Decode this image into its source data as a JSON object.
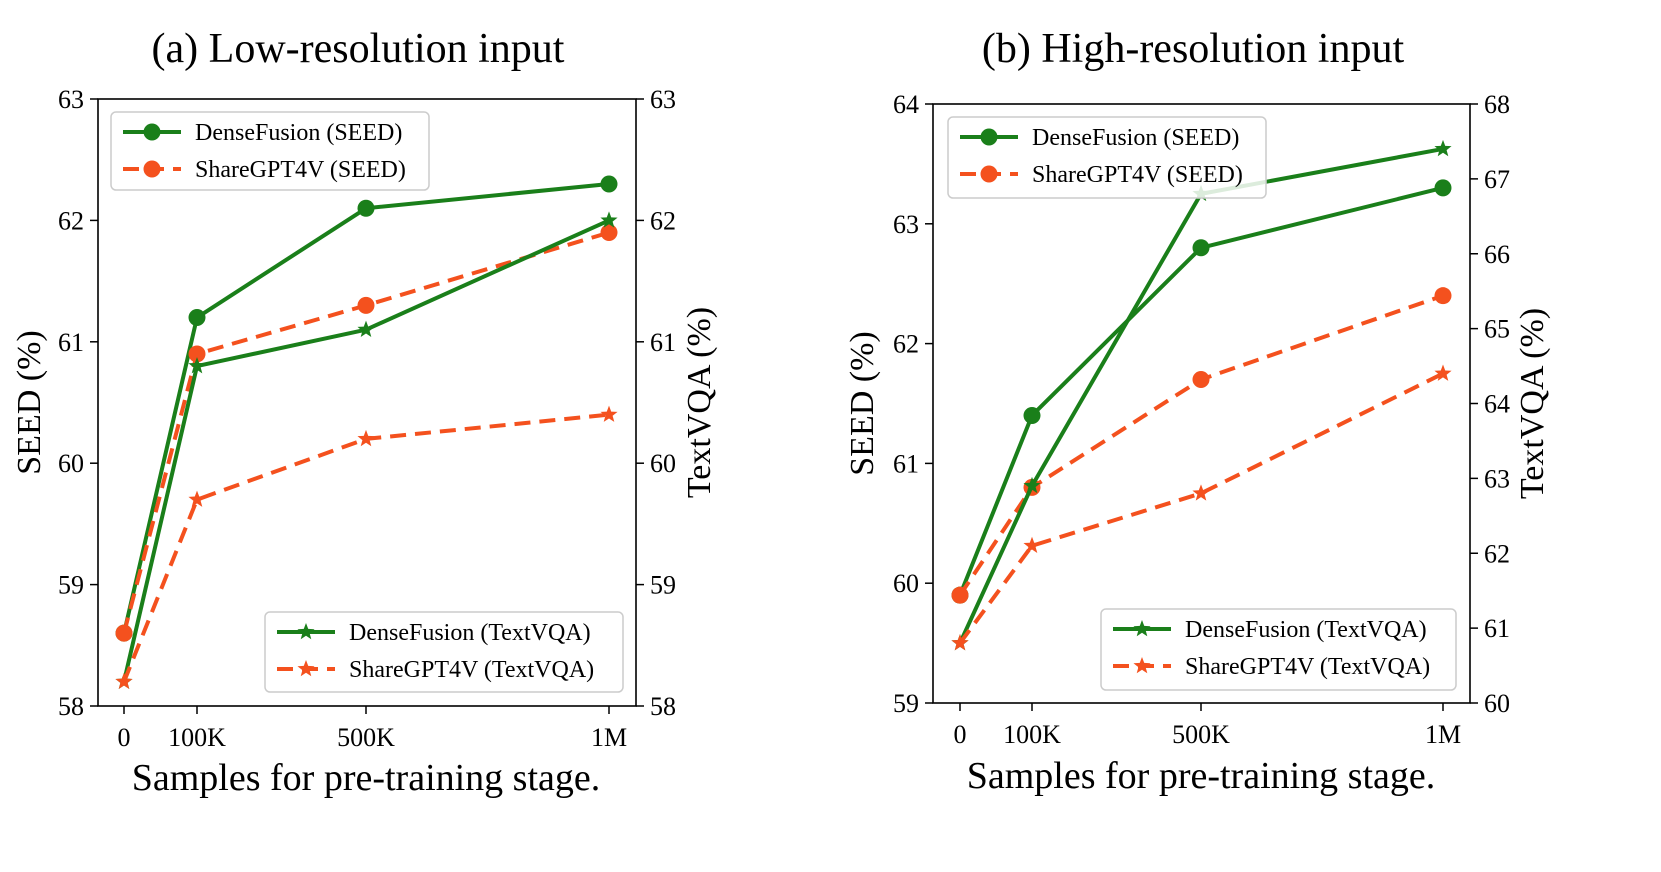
{
  "chart_data": [
    {
      "type": "line",
      "title": "(a) Low-resolution input",
      "xlabel": "Samples for pre-training stage.",
      "ylabel": "SEED (%)",
      "y2label": "TextVQA (%)",
      "x_tick_labels": [
        "0",
        "100K",
        "500K",
        "1M"
      ],
      "x": [
        0,
        100000,
        500000,
        1000000
      ],
      "ylim": [
        58,
        63
      ],
      "y2lim": [
        58,
        63
      ],
      "y_ticks": [
        58,
        59,
        60,
        61,
        62,
        63
      ],
      "y2_ticks": [
        58,
        59,
        60,
        61,
        62,
        63
      ],
      "legends": [
        {
          "placement": "upper-left",
          "entries": [
            "DenseFusion (SEED)",
            "ShareGPT4V (SEED)"
          ]
        },
        {
          "placement": "lower-right",
          "entries": [
            "DenseFusion (TextVQA)",
            "ShareGPT4V (TextVQA)"
          ]
        }
      ],
      "series": [
        {
          "name": "DenseFusion (SEED)",
          "axis": "left",
          "values": [
            58.6,
            61.2,
            62.1,
            62.3
          ],
          "color": "#1a7f1a",
          "style": "solid",
          "marker": "circle"
        },
        {
          "name": "ShareGPT4V (SEED)",
          "axis": "left",
          "values": [
            58.6,
            60.9,
            61.3,
            61.9
          ],
          "color": "#f4511e",
          "style": "dashed",
          "marker": "circle"
        },
        {
          "name": "DenseFusion (TextVQA)",
          "axis": "right",
          "values": [
            58.2,
            60.8,
            61.1,
            62.0
          ],
          "color": "#1a7f1a",
          "style": "solid",
          "marker": "star"
        },
        {
          "name": "ShareGPT4V (TextVQA)",
          "axis": "right",
          "values": [
            58.2,
            59.7,
            60.2,
            60.4
          ],
          "color": "#f4511e",
          "style": "dashed",
          "marker": "star"
        }
      ]
    },
    {
      "type": "line",
      "title": "(b) High-resolution input",
      "xlabel": "Samples for pre-training stage.",
      "ylabel": "SEED (%)",
      "y2label": "TextVQA (%)",
      "x_tick_labels": [
        "0",
        "100K",
        "500K",
        "1M"
      ],
      "x": [
        0,
        100000,
        500000,
        1000000
      ],
      "ylim": [
        59,
        64
      ],
      "y2lim": [
        60,
        68
      ],
      "y_ticks": [
        59,
        60,
        61,
        62,
        63,
        64
      ],
      "y2_ticks": [
        60,
        61,
        62,
        63,
        64,
        65,
        66,
        67,
        68
      ],
      "legends": [
        {
          "placement": "upper-left",
          "entries": [
            "DenseFusion (SEED)",
            "ShareGPT4V (SEED)"
          ]
        },
        {
          "placement": "lower-right",
          "entries": [
            "DenseFusion (TextVQA)",
            "ShareGPT4V (TextVQA)"
          ]
        }
      ],
      "series": [
        {
          "name": "DenseFusion (SEED)",
          "axis": "left",
          "values": [
            59.9,
            61.4,
            62.8,
            63.3
          ],
          "color": "#1a7f1a",
          "style": "solid",
          "marker": "circle"
        },
        {
          "name": "ShareGPT4V (SEED)",
          "axis": "left",
          "values": [
            59.9,
            60.8,
            61.7,
            62.4
          ],
          "color": "#f4511e",
          "style": "dashed",
          "marker": "circle"
        },
        {
          "name": "DenseFusion (TextVQA)",
          "axis": "right",
          "values": [
            60.8,
            62.9,
            66.8,
            67.4
          ],
          "color": "#1a7f1a",
          "style": "solid",
          "marker": "star"
        },
        {
          "name": "ShareGPT4V (TextVQA)",
          "axis": "right",
          "values": [
            60.8,
            62.1,
            62.8,
            64.4
          ],
          "color": "#f4511e",
          "style": "dashed",
          "marker": "star"
        }
      ]
    }
  ]
}
